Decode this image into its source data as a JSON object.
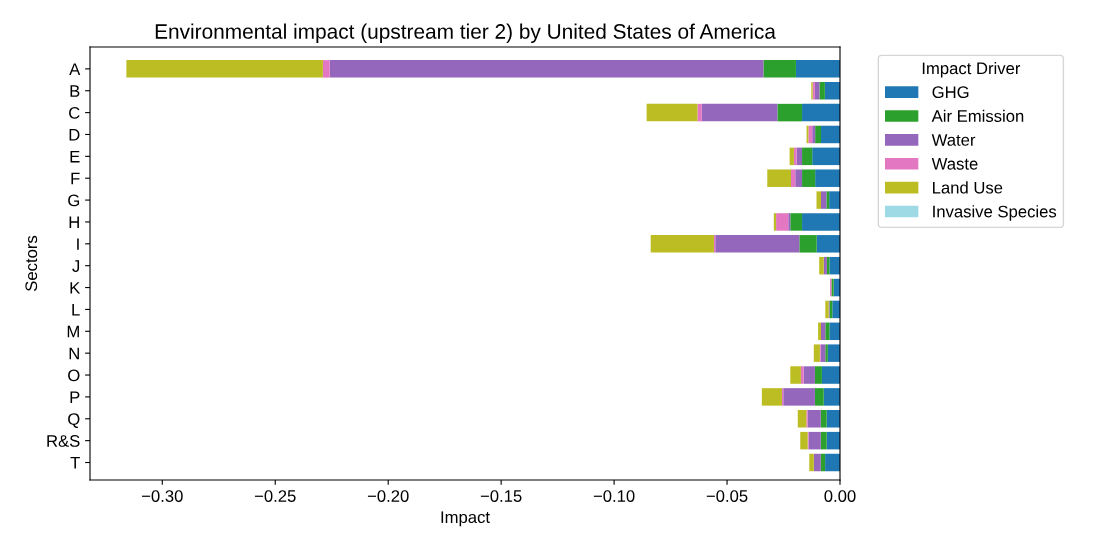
{
  "chart_data": {
    "type": "bar",
    "orientation": "horizontal",
    "stacked": true,
    "title": "Environmental impact (upstream tier 2) by United States of America",
    "xlabel": "Impact",
    "ylabel": "Sectors",
    "legend_title": "Impact Driver",
    "legend": "top right",
    "grid": false,
    "categories": [
      "A",
      "B",
      "C",
      "D",
      "E",
      "F",
      "G",
      "H",
      "I",
      "J",
      "K",
      "L",
      "M",
      "N",
      "O",
      "P",
      "Q",
      "R&S",
      "T"
    ],
    "xlim": [
      -0.332,
      0
    ],
    "xticks": [
      {
        "value": -0.3,
        "label": "−0.30"
      },
      {
        "value": -0.25,
        "label": "−0.25"
      },
      {
        "value": -0.2,
        "label": "−0.20"
      },
      {
        "value": -0.15,
        "label": "−0.15"
      },
      {
        "value": -0.1,
        "label": "−0.10"
      },
      {
        "value": -0.05,
        "label": "−0.05"
      },
      {
        "value": 0,
        "label": "0.00"
      }
    ],
    "series": [
      {
        "name": "GHG",
        "color": "#1f77b4",
        "values": [
          -0.0195,
          -0.0067,
          -0.0168,
          -0.0084,
          -0.0123,
          -0.011,
          -0.0048,
          -0.0168,
          -0.0103,
          -0.0047,
          -0.0028,
          -0.0034,
          -0.0047,
          -0.0054,
          -0.008,
          -0.0072,
          -0.0059,
          -0.0059,
          -0.0066
        ]
      },
      {
        "name": "Air Emission",
        "color": "#2ca02c",
        "values": [
          -0.0144,
          -0.0024,
          -0.0109,
          -0.0026,
          -0.0045,
          -0.0058,
          -0.0012,
          -0.0052,
          -0.0077,
          -0.0011,
          -0.001,
          -0.0012,
          -0.0018,
          -0.0011,
          -0.0031,
          -0.0039,
          -0.0026,
          -0.0026,
          -0.0019
        ]
      },
      {
        "name": "Water",
        "color": "#9467bd",
        "values": [
          -0.192,
          -0.002,
          -0.0335,
          -0.0013,
          -0.0024,
          -0.003,
          -0.0024,
          -0.0009,
          -0.0372,
          -0.0014,
          0,
          -0.0004,
          -0.0019,
          -0.002,
          -0.005,
          -0.014,
          -0.0058,
          -0.0054,
          -0.0031
        ]
      },
      {
        "name": "Waste",
        "color": "#e377c2",
        "values": [
          -0.003,
          -0.001,
          -0.0019,
          -0.0017,
          -0.0012,
          -0.0019,
          0,
          -0.0054,
          -0.0006,
          0,
          -0.0006,
          0,
          0,
          -0.0004,
          -0.0012,
          -0.0006,
          -0.0006,
          -0.0004,
          0
        ]
      },
      {
        "name": "Land Use",
        "color": "#bcbd22",
        "values": [
          -0.087,
          -0.0006,
          -0.0225,
          -0.0008,
          -0.0019,
          -0.0105,
          -0.002,
          -0.001,
          -0.028,
          -0.002,
          0,
          -0.0015,
          -0.0013,
          -0.0027,
          -0.0047,
          -0.0089,
          -0.0038,
          -0.0033,
          -0.002
        ]
      },
      {
        "name": "Invasive Species",
        "color": "#9edae5",
        "values": [
          0,
          0,
          0,
          0,
          0,
          0,
          0,
          0,
          0,
          0,
          0,
          0,
          0,
          0,
          0,
          0,
          0,
          0,
          0
        ]
      }
    ]
  }
}
